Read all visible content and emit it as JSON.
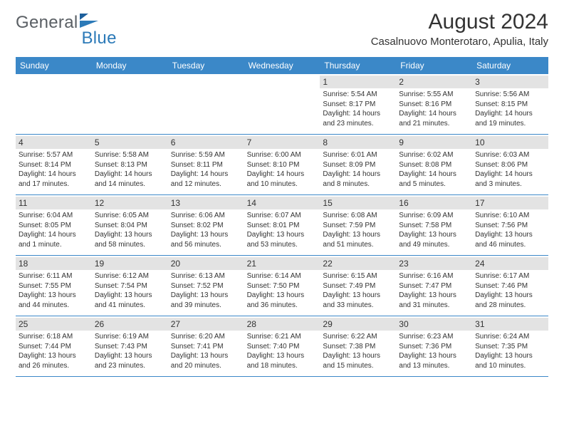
{
  "header": {
    "logo_general": "General",
    "logo_blue": "Blue",
    "title": "August 2024",
    "subtitle": "Casalnuovo Monterotaro, Apulia, Italy"
  },
  "calendar": {
    "day_headers": [
      "Sunday",
      "Monday",
      "Tuesday",
      "Wednesday",
      "Thursday",
      "Friday",
      "Saturday"
    ],
    "header_bg": "#3b88c8",
    "header_fg": "#ffffff",
    "daynum_bg": "#e3e3e3",
    "border_color": "#3b88c8",
    "weeks": [
      [
        {
          "blank": true
        },
        {
          "blank": true
        },
        {
          "blank": true
        },
        {
          "blank": true
        },
        {
          "num": "1",
          "sunrise": "Sunrise: 5:54 AM",
          "sunset": "Sunset: 8:17 PM",
          "daylight": "Daylight: 14 hours and 23 minutes."
        },
        {
          "num": "2",
          "sunrise": "Sunrise: 5:55 AM",
          "sunset": "Sunset: 8:16 PM",
          "daylight": "Daylight: 14 hours and 21 minutes."
        },
        {
          "num": "3",
          "sunrise": "Sunrise: 5:56 AM",
          "sunset": "Sunset: 8:15 PM",
          "daylight": "Daylight: 14 hours and 19 minutes."
        }
      ],
      [
        {
          "num": "4",
          "sunrise": "Sunrise: 5:57 AM",
          "sunset": "Sunset: 8:14 PM",
          "daylight": "Daylight: 14 hours and 17 minutes."
        },
        {
          "num": "5",
          "sunrise": "Sunrise: 5:58 AM",
          "sunset": "Sunset: 8:13 PM",
          "daylight": "Daylight: 14 hours and 14 minutes."
        },
        {
          "num": "6",
          "sunrise": "Sunrise: 5:59 AM",
          "sunset": "Sunset: 8:11 PM",
          "daylight": "Daylight: 14 hours and 12 minutes."
        },
        {
          "num": "7",
          "sunrise": "Sunrise: 6:00 AM",
          "sunset": "Sunset: 8:10 PM",
          "daylight": "Daylight: 14 hours and 10 minutes."
        },
        {
          "num": "8",
          "sunrise": "Sunrise: 6:01 AM",
          "sunset": "Sunset: 8:09 PM",
          "daylight": "Daylight: 14 hours and 8 minutes."
        },
        {
          "num": "9",
          "sunrise": "Sunrise: 6:02 AM",
          "sunset": "Sunset: 8:08 PM",
          "daylight": "Daylight: 14 hours and 5 minutes."
        },
        {
          "num": "10",
          "sunrise": "Sunrise: 6:03 AM",
          "sunset": "Sunset: 8:06 PM",
          "daylight": "Daylight: 14 hours and 3 minutes."
        }
      ],
      [
        {
          "num": "11",
          "sunrise": "Sunrise: 6:04 AM",
          "sunset": "Sunset: 8:05 PM",
          "daylight": "Daylight: 14 hours and 1 minute."
        },
        {
          "num": "12",
          "sunrise": "Sunrise: 6:05 AM",
          "sunset": "Sunset: 8:04 PM",
          "daylight": "Daylight: 13 hours and 58 minutes."
        },
        {
          "num": "13",
          "sunrise": "Sunrise: 6:06 AM",
          "sunset": "Sunset: 8:02 PM",
          "daylight": "Daylight: 13 hours and 56 minutes."
        },
        {
          "num": "14",
          "sunrise": "Sunrise: 6:07 AM",
          "sunset": "Sunset: 8:01 PM",
          "daylight": "Daylight: 13 hours and 53 minutes."
        },
        {
          "num": "15",
          "sunrise": "Sunrise: 6:08 AM",
          "sunset": "Sunset: 7:59 PM",
          "daylight": "Daylight: 13 hours and 51 minutes."
        },
        {
          "num": "16",
          "sunrise": "Sunrise: 6:09 AM",
          "sunset": "Sunset: 7:58 PM",
          "daylight": "Daylight: 13 hours and 49 minutes."
        },
        {
          "num": "17",
          "sunrise": "Sunrise: 6:10 AM",
          "sunset": "Sunset: 7:56 PM",
          "daylight": "Daylight: 13 hours and 46 minutes."
        }
      ],
      [
        {
          "num": "18",
          "sunrise": "Sunrise: 6:11 AM",
          "sunset": "Sunset: 7:55 PM",
          "daylight": "Daylight: 13 hours and 44 minutes."
        },
        {
          "num": "19",
          "sunrise": "Sunrise: 6:12 AM",
          "sunset": "Sunset: 7:54 PM",
          "daylight": "Daylight: 13 hours and 41 minutes."
        },
        {
          "num": "20",
          "sunrise": "Sunrise: 6:13 AM",
          "sunset": "Sunset: 7:52 PM",
          "daylight": "Daylight: 13 hours and 39 minutes."
        },
        {
          "num": "21",
          "sunrise": "Sunrise: 6:14 AM",
          "sunset": "Sunset: 7:50 PM",
          "daylight": "Daylight: 13 hours and 36 minutes."
        },
        {
          "num": "22",
          "sunrise": "Sunrise: 6:15 AM",
          "sunset": "Sunset: 7:49 PM",
          "daylight": "Daylight: 13 hours and 33 minutes."
        },
        {
          "num": "23",
          "sunrise": "Sunrise: 6:16 AM",
          "sunset": "Sunset: 7:47 PM",
          "daylight": "Daylight: 13 hours and 31 minutes."
        },
        {
          "num": "24",
          "sunrise": "Sunrise: 6:17 AM",
          "sunset": "Sunset: 7:46 PM",
          "daylight": "Daylight: 13 hours and 28 minutes."
        }
      ],
      [
        {
          "num": "25",
          "sunrise": "Sunrise: 6:18 AM",
          "sunset": "Sunset: 7:44 PM",
          "daylight": "Daylight: 13 hours and 26 minutes."
        },
        {
          "num": "26",
          "sunrise": "Sunrise: 6:19 AM",
          "sunset": "Sunset: 7:43 PM",
          "daylight": "Daylight: 13 hours and 23 minutes."
        },
        {
          "num": "27",
          "sunrise": "Sunrise: 6:20 AM",
          "sunset": "Sunset: 7:41 PM",
          "daylight": "Daylight: 13 hours and 20 minutes."
        },
        {
          "num": "28",
          "sunrise": "Sunrise: 6:21 AM",
          "sunset": "Sunset: 7:40 PM",
          "daylight": "Daylight: 13 hours and 18 minutes."
        },
        {
          "num": "29",
          "sunrise": "Sunrise: 6:22 AM",
          "sunset": "Sunset: 7:38 PM",
          "daylight": "Daylight: 13 hours and 15 minutes."
        },
        {
          "num": "30",
          "sunrise": "Sunrise: 6:23 AM",
          "sunset": "Sunset: 7:36 PM",
          "daylight": "Daylight: 13 hours and 13 minutes."
        },
        {
          "num": "31",
          "sunrise": "Sunrise: 6:24 AM",
          "sunset": "Sunset: 7:35 PM",
          "daylight": "Daylight: 13 hours and 10 minutes."
        }
      ]
    ]
  }
}
